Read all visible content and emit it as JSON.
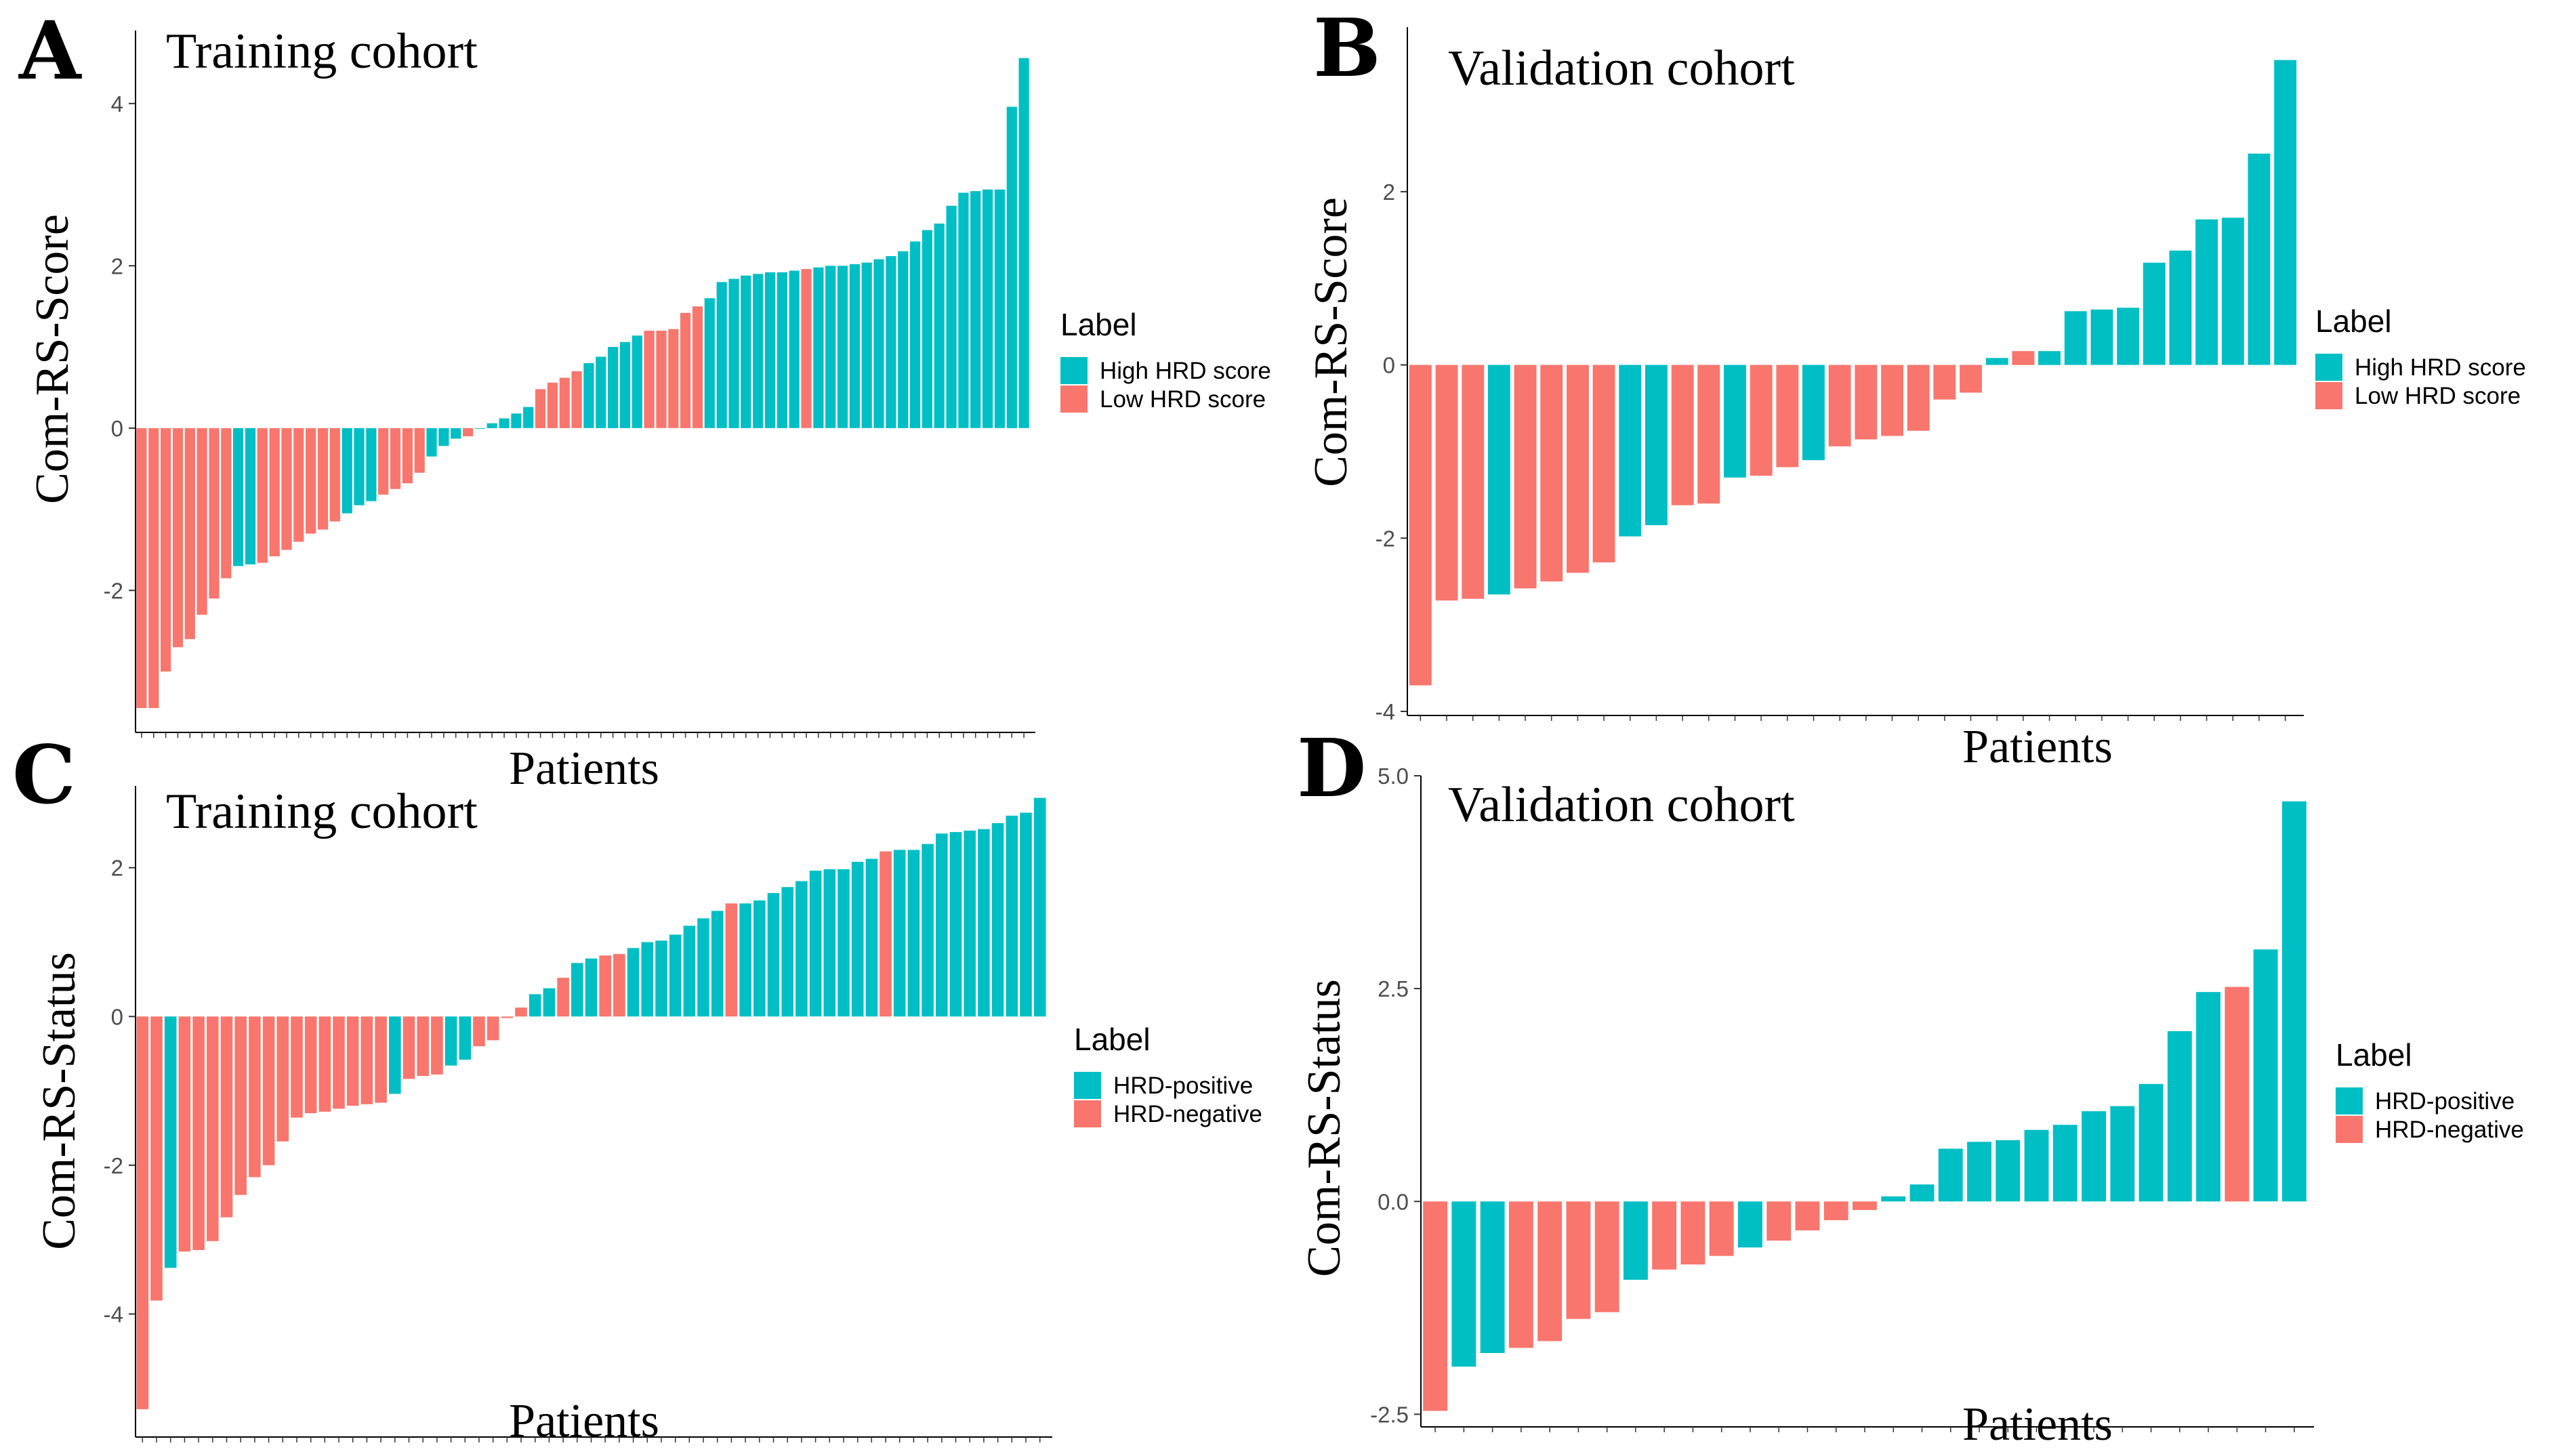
{
  "colors": {
    "high": "#00BFC4",
    "low": "#F8766D"
  },
  "panels": [
    {
      "letter": "A",
      "chart_data": {
        "type": "bar",
        "title": "Training cohort",
        "xlabel": "Patients",
        "ylabel": "Com-RS-Score",
        "ylim": [
          -3.7,
          4.9
        ],
        "yticks": [
          -2,
          0,
          2,
          4
        ],
        "legend": {
          "title": "Label",
          "position": "right",
          "items": [
            {
              "label": "High HRD score",
              "key": "high"
            },
            {
              "label": "Low HRD score",
              "key": "low"
            }
          ]
        },
        "values": [
          -3.45,
          -3.45,
          -3.0,
          -2.7,
          -2.6,
          -2.3,
          -2.1,
          -1.85,
          -1.7,
          -1.68,
          -1.66,
          -1.58,
          -1.5,
          -1.4,
          -1.3,
          -1.25,
          -1.15,
          -1.05,
          -0.95,
          -0.9,
          -0.82,
          -0.75,
          -0.68,
          -0.55,
          -0.35,
          -0.22,
          -0.13,
          -0.1,
          0.0,
          0.06,
          0.12,
          0.18,
          0.26,
          0.48,
          0.56,
          0.62,
          0.7,
          0.8,
          0.88,
          1.0,
          1.06,
          1.14,
          1.2,
          1.2,
          1.22,
          1.42,
          1.5,
          1.6,
          1.8,
          1.84,
          1.88,
          1.9,
          1.92,
          1.92,
          1.94,
          1.96,
          1.98,
          2.0,
          2.0,
          2.02,
          2.04,
          2.08,
          2.12,
          2.18,
          2.3,
          2.44,
          2.52,
          2.74,
          2.9,
          2.92,
          2.94,
          2.94,
          3.96,
          4.56
        ],
        "labels": [
          "low",
          "low",
          "low",
          "low",
          "low",
          "low",
          "low",
          "low",
          "high",
          "high",
          "low",
          "low",
          "low",
          "low",
          "low",
          "low",
          "low",
          "high",
          "high",
          "high",
          "low",
          "low",
          "low",
          "low",
          "high",
          "high",
          "high",
          "low",
          "high",
          "high",
          "high",
          "high",
          "high",
          "low",
          "low",
          "low",
          "low",
          "high",
          "high",
          "high",
          "high",
          "high",
          "low",
          "low",
          "low",
          "low",
          "low",
          "high",
          "high",
          "high",
          "high",
          "high",
          "high",
          "high",
          "high",
          "low",
          "high",
          "high",
          "high",
          "high",
          "high",
          "high",
          "high",
          "high",
          "high",
          "high",
          "high",
          "high",
          "high",
          "high",
          "high",
          "high",
          "high",
          "high"
        ]
      }
    },
    {
      "letter": "B",
      "chart_data": {
        "type": "bar",
        "title": "Validation cohort",
        "xlabel": "Patients",
        "ylabel": "Com-RS-Score",
        "ylim": [
          -4.0,
          3.9
        ],
        "yticks": [
          -4,
          -2,
          0,
          2
        ],
        "legend": {
          "title": "Label",
          "position": "right",
          "items": [
            {
              "label": "High HRD score",
              "key": "high"
            },
            {
              "label": "Low HRD score",
              "key": "low"
            }
          ]
        },
        "values": [
          -3.7,
          -2.72,
          -2.7,
          -2.65,
          -2.58,
          -2.5,
          -2.4,
          -2.28,
          -1.98,
          -1.85,
          -1.62,
          -1.6,
          -1.3,
          -1.28,
          -1.18,
          -1.1,
          -0.94,
          -0.86,
          -0.82,
          -0.76,
          -0.4,
          -0.32,
          0.08,
          0.16,
          0.16,
          0.62,
          0.64,
          0.66,
          1.18,
          1.32,
          1.68,
          1.7,
          2.44,
          3.52
        ],
        "labels": [
          "low",
          "low",
          "low",
          "high",
          "low",
          "low",
          "low",
          "low",
          "high",
          "high",
          "low",
          "low",
          "high",
          "low",
          "low",
          "high",
          "low",
          "low",
          "low",
          "low",
          "low",
          "low",
          "high",
          "low",
          "high",
          "high",
          "high",
          "high",
          "high",
          "high",
          "high",
          "high",
          "high",
          "high"
        ]
      }
    },
    {
      "letter": "C",
      "chart_data": {
        "type": "bar",
        "title": "Training cohort",
        "xlabel": "Patients",
        "ylabel": "Com-RS-Status",
        "ylim": [
          -5.6,
          3.1
        ],
        "yticks": [
          -4,
          -2,
          0,
          2
        ],
        "legend": {
          "title": "Label",
          "position": "right",
          "items": [
            {
              "label": "HRD-positive",
              "key": "high"
            },
            {
              "label": "HRD-negative",
              "key": "low"
            }
          ]
        },
        "values": [
          -5.28,
          -3.82,
          -3.38,
          -3.16,
          -3.14,
          -3.02,
          -2.7,
          -2.4,
          -2.16,
          -2.0,
          -1.68,
          -1.36,
          -1.3,
          -1.28,
          -1.24,
          -1.2,
          -1.18,
          -1.16,
          -1.04,
          -0.84,
          -0.8,
          -0.78,
          -0.66,
          -0.58,
          -0.4,
          -0.32,
          -0.02,
          0.12,
          0.3,
          0.38,
          0.52,
          0.72,
          0.78,
          0.82,
          0.84,
          0.92,
          1.0,
          1.02,
          1.1,
          1.22,
          1.32,
          1.42,
          1.52,
          1.52,
          1.56,
          1.66,
          1.74,
          1.82,
          1.96,
          1.98,
          1.98,
          2.08,
          2.12,
          2.22,
          2.24,
          2.24,
          2.32,
          2.46,
          2.48,
          2.5,
          2.52,
          2.6,
          2.7,
          2.74,
          2.94
        ],
        "labels": [
          "low",
          "low",
          "high",
          "low",
          "low",
          "low",
          "low",
          "low",
          "low",
          "low",
          "low",
          "low",
          "low",
          "low",
          "low",
          "low",
          "low",
          "low",
          "high",
          "low",
          "low",
          "low",
          "high",
          "high",
          "low",
          "low",
          "low",
          "low",
          "high",
          "high",
          "low",
          "high",
          "high",
          "low",
          "low",
          "high",
          "high",
          "high",
          "high",
          "high",
          "high",
          "high",
          "low",
          "high",
          "high",
          "high",
          "high",
          "high",
          "high",
          "high",
          "high",
          "high",
          "high",
          "low",
          "high",
          "high",
          "high",
          "high",
          "high",
          "high",
          "high",
          "high",
          "high",
          "high",
          "high"
        ]
      }
    },
    {
      "letter": "D",
      "chart_data": {
        "type": "bar",
        "title": "Validation cohort",
        "xlabel": "Patients",
        "ylabel": "Com-RS-Status",
        "ylim": [
          -2.6,
          5.0
        ],
        "yticks": [
          -2.5,
          0.0,
          2.5,
          5.0
        ],
        "legend": {
          "title": "Label",
          "position": "right",
          "items": [
            {
              "label": "HRD-positive",
              "key": "high"
            },
            {
              "label": "HRD-negative",
              "key": "low"
            }
          ]
        },
        "values": [
          -2.46,
          -1.94,
          -1.78,
          -1.72,
          -1.64,
          -1.38,
          -1.3,
          -0.92,
          -0.8,
          -0.74,
          -0.64,
          -0.54,
          -0.46,
          -0.34,
          -0.22,
          -0.1,
          0.06,
          0.2,
          0.62,
          0.7,
          0.72,
          0.84,
          0.9,
          1.06,
          1.12,
          1.38,
          2.0,
          2.46,
          2.52,
          2.96,
          4.7
        ],
        "labels": [
          "low",
          "high",
          "high",
          "low",
          "low",
          "low",
          "low",
          "high",
          "low",
          "low",
          "low",
          "high",
          "low",
          "low",
          "low",
          "low",
          "high",
          "high",
          "high",
          "high",
          "high",
          "high",
          "high",
          "high",
          "high",
          "high",
          "high",
          "high",
          "low",
          "high",
          "high"
        ]
      }
    }
  ]
}
